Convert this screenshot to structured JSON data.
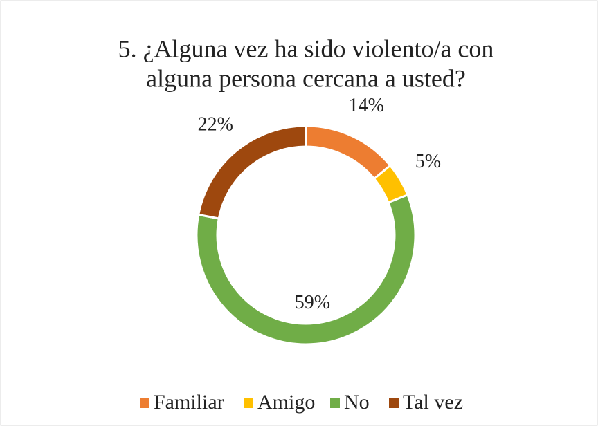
{
  "chart_data": {
    "type": "pie",
    "title": [
      "5. ¿Alguna vez ha sido violento/a con",
      "alguna persona cercana a usted?"
    ],
    "categories": [
      "Familiar",
      "Amigo",
      "No",
      "Tal vez"
    ],
    "values": [
      14,
      5,
      59,
      22
    ],
    "value_labels": [
      "14%",
      "5%",
      "59%",
      "22%"
    ],
    "colors": [
      "#ed7d31",
      "#ffc000",
      "#70ad47",
      "#9e480e"
    ]
  }
}
